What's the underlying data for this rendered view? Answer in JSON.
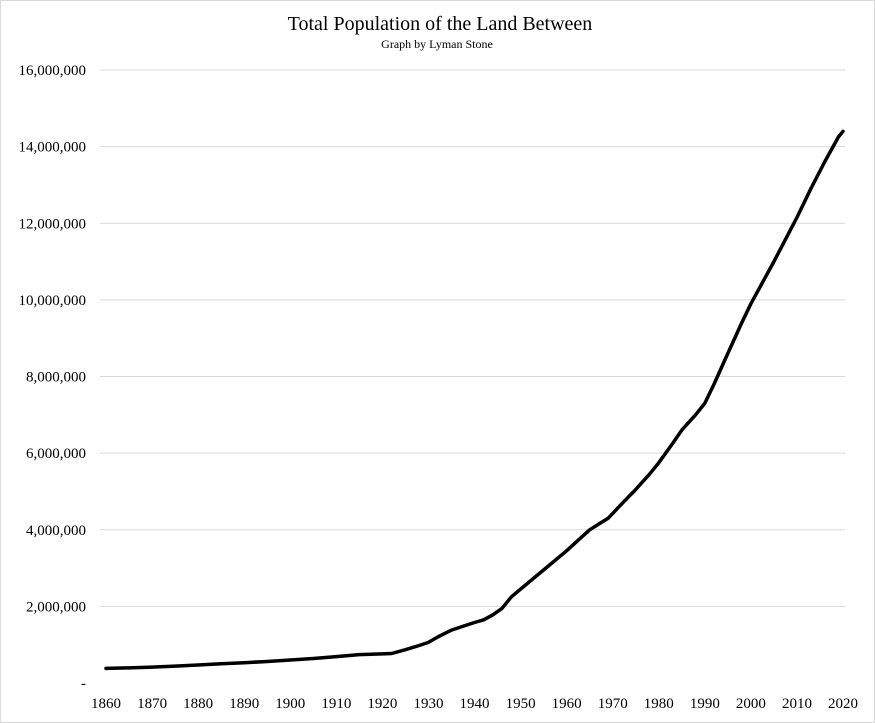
{
  "chart_data": {
    "type": "line",
    "title": "Total Population of the Land Between",
    "subtitle": "Graph by Lyman Stone",
    "xlabel": "",
    "ylabel": "",
    "xlim": [
      1860,
      2020
    ],
    "ylim": [
      0,
      16000000
    ],
    "grid": "horizontal",
    "legend": "none",
    "line_color": "#000000",
    "grid_color": "#d9d9d9",
    "x_tick_labels": [
      "1860",
      "1870",
      "1880",
      "1890",
      "1900",
      "1910",
      "1920",
      "1930",
      "1940",
      "1950",
      "1960",
      "1970",
      "1980",
      "1990",
      "2000",
      "2010",
      "2020"
    ],
    "y_tick_values": [
      0,
      2000000,
      4000000,
      6000000,
      8000000,
      10000000,
      12000000,
      14000000,
      16000000
    ],
    "y_tick_labels": [
      "-",
      "2,000,000",
      "4,000,000",
      "6,000,000",
      "8,000,000",
      "10,000,000",
      "12,000,000",
      "14,000,000",
      "16,000,000"
    ],
    "series": [
      {
        "name": "Total Population",
        "x": [
          1860,
          1865,
          1870,
          1875,
          1880,
          1885,
          1890,
          1895,
          1900,
          1905,
          1910,
          1915,
          1920,
          1922,
          1925,
          1928,
          1930,
          1932,
          1935,
          1938,
          1940,
          1942,
          1944,
          1946,
          1948,
          1950,
          1953,
          1956,
          1960,
          1963,
          1965,
          1967,
          1969,
          1972,
          1975,
          1978,
          1980,
          1983,
          1985,
          1988,
          1990,
          1992,
          1995,
          1998,
          2000,
          2005,
          2010,
          2013,
          2016,
          2019,
          2020
        ],
        "values": [
          380000,
          395000,
          415000,
          440000,
          470000,
          500000,
          530000,
          560000,
          600000,
          640000,
          690000,
          740000,
          760000,
          770000,
          870000,
          980000,
          1060000,
          1200000,
          1380000,
          1500000,
          1580000,
          1650000,
          1780000,
          1950000,
          2250000,
          2450000,
          2750000,
          3050000,
          3450000,
          3780000,
          4000000,
          4150000,
          4300000,
          4680000,
          5050000,
          5450000,
          5750000,
          6250000,
          6600000,
          7000000,
          7300000,
          7800000,
          8600000,
          9400000,
          9900000,
          11000000,
          12150000,
          12900000,
          13600000,
          14250000,
          14400000
        ]
      }
    ]
  }
}
